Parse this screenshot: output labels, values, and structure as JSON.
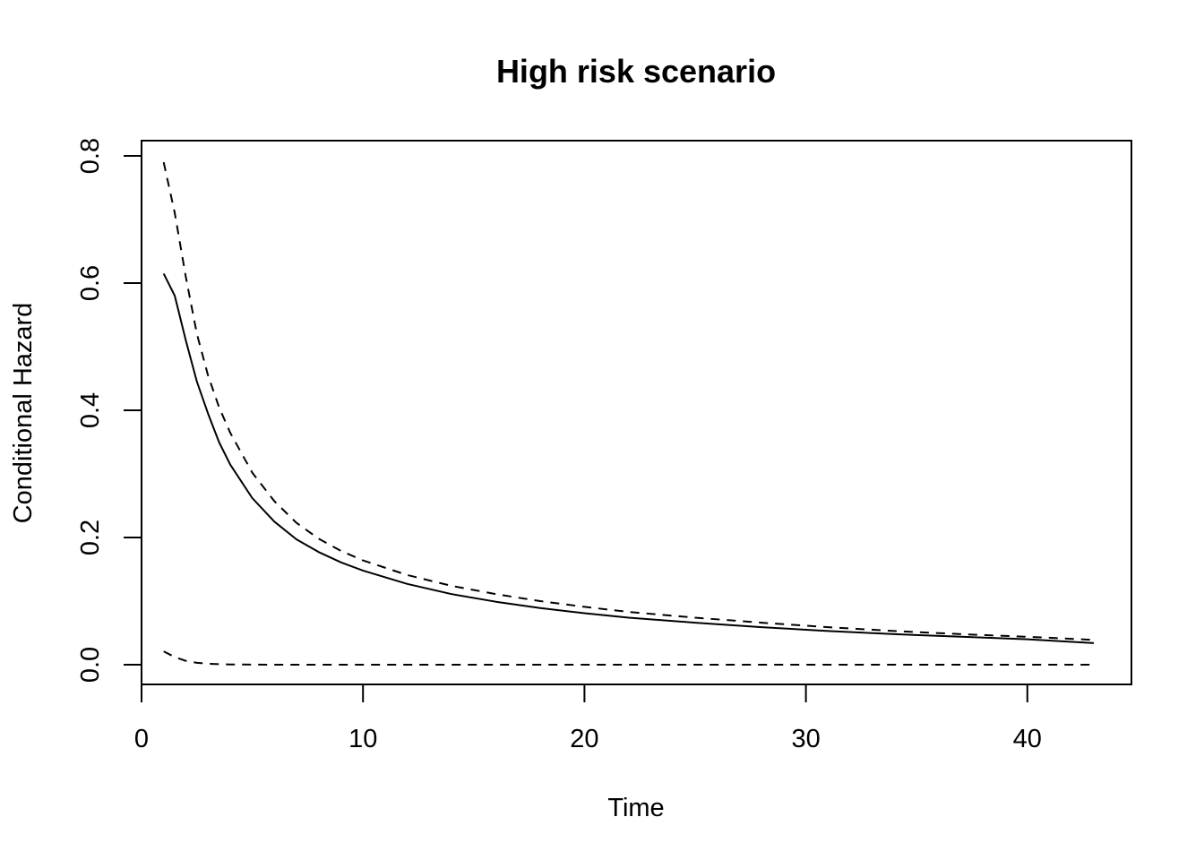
{
  "chart_data": {
    "type": "line",
    "title": "High risk scenario",
    "xlabel": "Time",
    "ylabel": "Conditional Hazard",
    "xlim": [
      0.0,
      44.7
    ],
    "ylim": [
      -0.031,
      0.824
    ],
    "xticks": [
      0,
      10,
      20,
      30,
      40
    ],
    "xtick_labels": [
      "0",
      "10",
      "20",
      "30",
      "40"
    ],
    "yticks": [
      0.0,
      0.2,
      0.4,
      0.6,
      0.8
    ],
    "ytick_labels": [
      "0.0",
      "0.2",
      "0.4",
      "0.6",
      "0.8"
    ],
    "grid": false,
    "legend": "none",
    "x": [
      1,
      1.5,
      2,
      2.5,
      3,
      3.5,
      4,
      5,
      6,
      7,
      8,
      9,
      10,
      12,
      14,
      16,
      18,
      20,
      22,
      25,
      28,
      31,
      34,
      37,
      40,
      43
    ],
    "series": [
      {
        "style": "solid",
        "values": [
          0.615,
          0.58,
          0.51,
          0.445,
          0.395,
          0.35,
          0.315,
          0.262,
          0.225,
          0.197,
          0.177,
          0.161,
          0.148,
          0.127,
          0.111,
          0.099,
          0.089,
          0.081,
          0.074,
          0.066,
          0.059,
          0.053,
          0.048,
          0.044,
          0.04,
          0.034
        ]
      },
      {
        "style": "dashed",
        "values": [
          0.79,
          0.71,
          0.61,
          0.52,
          0.455,
          0.405,
          0.365,
          0.302,
          0.257,
          0.223,
          0.198,
          0.179,
          0.164,
          0.141,
          0.124,
          0.111,
          0.1,
          0.091,
          0.083,
          0.074,
          0.066,
          0.059,
          0.053,
          0.048,
          0.044,
          0.039
        ]
      },
      {
        "style": "dashed",
        "values": [
          0.021,
          0.012,
          0.006,
          0.003,
          0.0015,
          0.0008,
          0.0004,
          0.0001,
          0,
          0,
          0,
          0,
          0,
          0,
          0,
          0,
          0,
          0,
          0,
          0,
          0,
          0,
          0,
          0,
          0,
          0
        ]
      }
    ]
  }
}
